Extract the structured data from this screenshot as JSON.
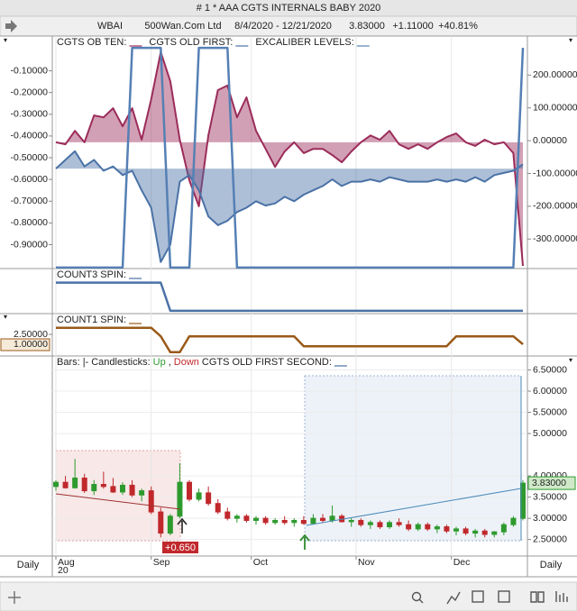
{
  "window_title": "# 1 * AAA  CGTS INTERNALS BABY 2020",
  "toolbar": {
    "symbol": "WBAI",
    "company": "500Wan.Com Ltd",
    "range": "8/4/2020 - 12/21/2020",
    "price": "3.83000",
    "change": "+1.11000",
    "change_pct": "+40.81%"
  },
  "footer": {
    "period_left": "Daily",
    "period_right": "Daily"
  },
  "chart_data": {
    "type": "panels",
    "x": [
      0,
      2,
      4,
      6,
      8,
      10,
      12,
      14,
      16,
      18,
      20,
      22,
      24,
      26,
      28,
      30,
      32,
      34,
      36,
      38,
      40,
      42,
      44,
      46,
      48,
      50,
      52,
      54,
      56,
      58,
      60,
      62,
      64,
      66,
      68,
      70,
      72,
      74,
      76,
      78,
      80,
      82,
      84,
      86,
      88,
      90,
      92,
      94,
      96,
      98
    ],
    "xlim": [
      0,
      98
    ],
    "xticks": [
      {
        "value": 0,
        "label": "Aug"
      },
      {
        "value": 20,
        "label": "Sep"
      },
      {
        "value": 41,
        "label": "Oct"
      },
      {
        "value": 63,
        "label": "Nov"
      },
      {
        "value": 83,
        "label": "Dec"
      }
    ],
    "x_year": "20",
    "annotations": [
      "+0.650"
    ],
    "panels": [
      {
        "type": "line",
        "y_side": "left",
        "ylim": [
          -1.01,
          0.06
        ],
        "yticks": [
          {
            "value": -0.1,
            "label": "-0.10000"
          },
          {
            "value": -0.2,
            "label": "-0.20000"
          },
          {
            "value": -0.3,
            "label": "-0.30000"
          },
          {
            "value": -0.4,
            "label": "-0.40000"
          },
          {
            "value": -0.5,
            "label": "-0.50000"
          },
          {
            "value": -0.6,
            "label": "-0.60000"
          },
          {
            "value": -0.7,
            "label": "-0.70000"
          },
          {
            "value": -0.8,
            "label": "-0.80000"
          },
          {
            "value": -0.9,
            "label": "-0.90000"
          }
        ],
        "y2lim": [
          -390,
          319
        ],
        "y2ticks": [
          {
            "value": 200,
            "label": "200.00000"
          },
          {
            "value": 100,
            "label": "100.00000"
          },
          {
            "value": 0,
            "label": "0.00000"
          },
          {
            "value": -100,
            "label": "-100.00000"
          },
          {
            "value": -200,
            "label": "-200.00000"
          },
          {
            "value": -300,
            "label": "-300.00000"
          }
        ],
        "series": [
          {
            "name": "CGTS OB TEN:",
            "color": "#9b2c5a",
            "axis": "y2",
            "fill": true,
            "values": [
              -5,
              -11,
              30,
              -5,
              77,
              71,
              99,
              44,
              99,
              3,
              126,
              270,
              181,
              3,
              -121,
              -200,
              16,
              154,
              168,
              71,
              132,
              30,
              -25,
              -80,
              -33,
              -5,
              -38,
              -25,
              -25,
              -44,
              -66,
              -33,
              -5,
              16,
              3,
              30,
              -11,
              -25,
              -11,
              -25,
              -5,
              11,
              22,
              -5,
              -16,
              3,
              -11,
              -5,
              -38,
              -382
            ]
          },
          {
            "name": "CGTS OLD FIRST:",
            "color": "#4a72a6",
            "fill": true,
            "values": [
              -0.55,
              -0.51,
              -0.47,
              -0.54,
              -0.51,
              -0.56,
              -0.54,
              -0.58,
              -0.56,
              -0.65,
              -0.73,
              -0.98,
              -0.9,
              -0.61,
              -0.58,
              -0.65,
              -0.77,
              -0.81,
              -0.79,
              -0.75,
              -0.73,
              -0.7,
              -0.72,
              -0.71,
              -0.68,
              -0.7,
              -0.67,
              -0.65,
              -0.63,
              -0.6,
              -0.63,
              -0.61,
              -0.61,
              -0.6,
              -0.61,
              -0.59,
              -0.6,
              -0.61,
              -0.61,
              -0.61,
              -0.6,
              -0.61,
              -0.6,
              -0.61,
              -0.59,
              -0.61,
              -0.58,
              -0.57,
              -0.56,
              -0.53
            ]
          },
          {
            "name": "EXCALIBER LEVELS:",
            "color": "#5580b4",
            "axis": "y2",
            "values": [
              -387,
              -387,
              -387,
              -387,
              -387,
              -387,
              -387,
              -387,
              283,
              283,
              283,
              283,
              -387,
              -387,
              -387,
              283,
              283,
              283,
              283,
              -387,
              -387,
              -387,
              -387,
              -387,
              -387,
              -387,
              -387,
              -387,
              -387,
              -387,
              -387,
              -387,
              -387,
              -387,
              -387,
              -387,
              -387,
              -387,
              -387,
              -387,
              -387,
              -387,
              -387,
              -387,
              -387,
              -387,
              -387,
              -387,
              -387,
              283
            ]
          }
        ]
      },
      {
        "type": "line",
        "y_side": "left",
        "ylim": [
          -0.1,
          1.5
        ],
        "series": [
          {
            "name": "COUNT3 SPIN:",
            "color": "#4a72a6",
            "values": [
              1,
              1,
              1,
              1,
              1,
              1,
              1,
              1,
              1,
              1,
              1,
              1,
              0,
              0,
              0,
              0,
              0,
              0,
              0,
              0,
              0,
              0,
              0,
              0,
              0,
              0,
              0,
              0,
              0,
              0,
              0,
              0,
              0,
              0,
              0,
              0,
              0,
              0,
              0,
              0,
              0,
              0,
              0,
              0,
              0,
              0,
              0,
              0,
              0,
              0
            ]
          }
        ]
      },
      {
        "type": "line",
        "y_side": "left",
        "ylim": [
          -0.77,
          5.64
        ],
        "yticks": [
          {
            "value": 2.5,
            "label": "2.50000"
          }
        ],
        "series": [
          {
            "name": "COUNT1 SPIN:",
            "color": "#9a5a18",
            "values": [
              3.5,
              3.5,
              3.5,
              3.5,
              3.5,
              3.5,
              3.5,
              3.5,
              3.5,
              3.5,
              3.5,
              2.2,
              -0.2,
              -0.2,
              2.2,
              2.2,
              2.2,
              2.2,
              2.2,
              2.2,
              2.2,
              2.2,
              2.2,
              2.2,
              2.2,
              2.2,
              0.7,
              0.7,
              0.7,
              0.7,
              0.7,
              0.7,
              0.7,
              0.7,
              0.7,
              0.7,
              0.7,
              0.7,
              0.7,
              0.7,
              0.7,
              0.7,
              2.2,
              2.2,
              2.2,
              2.2,
              2.2,
              2.2,
              2.2,
              1.0
            ],
            "value_labels": [
              null,
              null,
              null,
              null,
              null,
              null,
              null,
              null,
              null,
              null,
              null,
              null,
              null,
              null,
              null,
              null,
              null,
              null,
              null,
              null,
              null,
              null,
              null,
              null,
              null,
              null,
              null,
              null,
              null,
              null,
              null,
              null,
              null,
              null,
              null,
              null,
              null,
              null,
              null,
              null,
              null,
              null,
              null,
              null,
              null,
              null,
              null,
              null,
              null,
              "1.00000"
            ]
          }
        ]
      },
      {
        "type": "candlestick",
        "y_side": "right",
        "grid": true,
        "ylim": [
          2.11,
          6.83
        ],
        "yticks": [
          {
            "value": 2.5,
            "label": "2.50000"
          },
          {
            "value": 3,
            "label": "3.00000"
          },
          {
            "value": 3.5,
            "label": "3.50000"
          },
          {
            "value": 4,
            "label": "4.00000"
          },
          {
            "value": 5,
            "label": "5.00000"
          },
          {
            "value": 5.5,
            "label": "5.50000"
          },
          {
            "value": 6,
            "label": "6.00000"
          },
          {
            "value": 6.5,
            "label": "6.50000"
          }
        ],
        "legend": [
          {
            "text": "Bars:"
          },
          {
            "text": "|-"
          },
          {
            "text": "Candlesticks:"
          },
          {
            "text": "Up",
            "color": "#2e9a2e"
          },
          {
            "text": ","
          },
          {
            "text": "Down",
            "color": "#c0282c"
          },
          {
            "text": "CGTS OLD FIRST SECOND:",
            "swatch": "#4a72a6"
          }
        ],
        "series": [
          {
            "up_color": "#2e9a2e",
            "down_color": "#c0282c",
            "open": [
              3.75,
              3.85,
              3.72,
              3.95,
              3.65,
              3.8,
              3.75,
              3.62,
              3.78,
              3.55,
              3.65,
              3.15,
              2.65,
              3.05,
              3.85,
              3.45,
              3.6,
              3.35,
              3.15,
              3.0,
              3.05,
              2.95,
              3.0,
              2.9,
              2.95,
              2.9,
              2.95,
              2.88,
              3.0,
              2.95,
              3.05,
              2.92,
              2.95,
              2.85,
              2.9,
              2.8,
              2.9,
              2.85,
              2.75,
              2.85,
              2.75,
              2.8,
              2.7,
              2.75,
              2.65,
              2.7,
              2.62,
              2.68,
              2.85,
              3.0
            ],
            "high": [
              3.9,
              4.0,
              4.4,
              4.05,
              3.9,
              4.1,
              3.95,
              3.85,
              3.9,
              3.7,
              3.75,
              3.25,
              3.1,
              4.3,
              3.9,
              3.7,
              3.75,
              3.45,
              3.25,
              3.1,
              3.1,
              3.05,
              3.05,
              3.0,
              3.05,
              3.0,
              3.05,
              3.1,
              3.1,
              3.3,
              3.1,
              3.0,
              3.0,
              2.95,
              2.95,
              2.95,
              3.0,
              2.95,
              2.9,
              2.9,
              2.85,
              2.85,
              2.8,
              2.8,
              2.75,
              2.75,
              2.7,
              2.9,
              3.05,
              3.9
            ],
            "low": [
              3.65,
              3.7,
              3.7,
              3.6,
              3.55,
              3.7,
              3.6,
              3.55,
              3.5,
              3.4,
              3.1,
              2.55,
              2.6,
              3.0,
              3.4,
              3.4,
              3.3,
              3.1,
              2.95,
              2.9,
              2.9,
              2.85,
              2.85,
              2.85,
              2.85,
              2.8,
              2.85,
              2.85,
              2.9,
              2.9,
              2.9,
              2.8,
              2.8,
              2.75,
              2.75,
              2.75,
              2.8,
              2.7,
              2.7,
              2.7,
              2.65,
              2.65,
              2.6,
              2.6,
              2.55,
              2.55,
              2.55,
              2.6,
              2.8,
              2.95
            ],
            "close": [
              3.85,
              3.72,
              3.95,
              3.65,
              3.8,
              3.75,
              3.62,
              3.78,
              3.55,
              3.65,
              3.15,
              2.65,
              3.05,
              3.85,
              3.45,
              3.6,
              3.35,
              3.15,
              3.0,
              3.05,
              2.95,
              3.0,
              2.9,
              2.95,
              2.9,
              2.95,
              2.88,
              3.0,
              2.95,
              3.05,
              2.92,
              2.95,
              2.85,
              2.9,
              2.8,
              2.9,
              2.85,
              2.75,
              2.85,
              2.75,
              2.8,
              2.7,
              2.75,
              2.65,
              2.7,
              2.62,
              2.68,
              2.85,
              3.0,
              3.83
            ],
            "close_labels": [
              null,
              null,
              null,
              null,
              null,
              null,
              null,
              null,
              null,
              null,
              null,
              null,
              null,
              null,
              null,
              null,
              null,
              null,
              null,
              null,
              null,
              null,
              null,
              null,
              null,
              null,
              null,
              null,
              null,
              null,
              null,
              null,
              null,
              null,
              null,
              null,
              null,
              null,
              null,
              null,
              null,
              null,
              null,
              null,
              null,
              null,
              null,
              null,
              null,
              "3.83000"
            ]
          }
        ]
      }
    ]
  }
}
